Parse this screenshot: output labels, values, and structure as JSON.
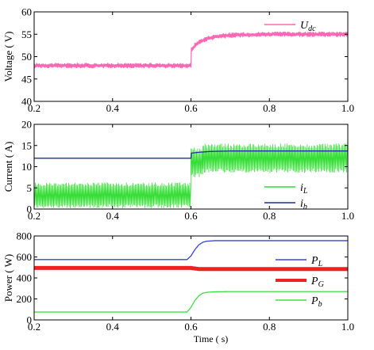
{
  "chart_data": [
    {
      "type": "line",
      "xlim": [
        0.2,
        1.0
      ],
      "ylim": [
        40,
        60
      ],
      "xticks": [
        "0.2",
        "0.4",
        "0.6",
        "0.8",
        "1.0"
      ],
      "yticks": [
        "40",
        "45",
        "50",
        "55",
        "60"
      ],
      "ylabel": "Voltage ( V)",
      "grid": false,
      "legend_position": "top-right",
      "series": [
        {
          "legend_main": "U",
          "legend_sub": "dc",
          "color": "#ff66b3",
          "band": 0.6,
          "x": [
            0.2,
            0.6,
            0.601,
            0.61,
            0.62,
            0.63,
            0.64,
            0.66,
            0.7,
            0.8,
            1.0
          ],
          "y": [
            48,
            48,
            51.5,
            52.5,
            53.2,
            53.6,
            54.0,
            54.4,
            54.8,
            55.0,
            55.0
          ]
        }
      ]
    },
    {
      "type": "line",
      "xlim": [
        0.2,
        1.0
      ],
      "ylim": [
        0,
        20
      ],
      "xticks": [
        "0.2",
        "0.4",
        "0.6",
        "0.8",
        "1.0"
      ],
      "yticks": [
        "0",
        "5",
        "10",
        "15",
        "20"
      ],
      "ylabel": "Current ( A)",
      "grid": false,
      "legend_position": "bottom-right",
      "series": [
        {
          "legend_main": "i",
          "legend_sub": "L",
          "color": "#33dd33",
          "band_ranges": [
            [
              0.2,
              0.6,
              0.2,
              6.3
            ],
            [
              0.6,
              0.63,
              7.5,
              14.5
            ],
            [
              0.63,
              1.0,
              8.5,
              15.5
            ]
          ]
        },
        {
          "legend_main": "i",
          "legend_sub": "b",
          "color": "#1a3399",
          "x": [
            0.2,
            0.6,
            0.601,
            0.62,
            0.65,
            0.7,
            1.0
          ],
          "y": [
            12,
            12,
            13.2,
            13.4,
            13.6,
            13.7,
            13.7
          ]
        }
      ]
    },
    {
      "type": "line",
      "xlim": [
        0.2,
        1.0
      ],
      "ylim": [
        0,
        800
      ],
      "xticks": [
        "0.2",
        "0.4",
        "0.6",
        "0.8",
        "1.0"
      ],
      "yticks": [
        "0",
        "200",
        "400",
        "600",
        "800"
      ],
      "ylabel": "Power ( W)",
      "xlabel": "Time ( s)",
      "grid": false,
      "legend_position": "right",
      "series": [
        {
          "legend_main": "P",
          "legend_sub": "L",
          "color": "#3344dd",
          "x": [
            0.2,
            0.59,
            0.6,
            0.61,
            0.62,
            0.63,
            0.64,
            0.66,
            0.7,
            1.0
          ],
          "y": [
            575,
            575,
            610,
            670,
            715,
            740,
            750,
            755,
            755,
            755
          ]
        },
        {
          "legend_main": "P",
          "legend_sub": "G",
          "color": "#ee2222",
          "width": 5,
          "x": [
            0.2,
            0.6,
            0.62,
            1.0
          ],
          "y": [
            495,
            495,
            485,
            485
          ]
        },
        {
          "legend_main": "P",
          "legend_sub": "b",
          "color": "#44dd44",
          "x": [
            0.2,
            0.59,
            0.6,
            0.61,
            0.62,
            0.63,
            0.64,
            0.66,
            0.7,
            1.0
          ],
          "y": [
            75,
            75,
            120,
            185,
            230,
            255,
            263,
            268,
            270,
            270
          ]
        }
      ]
    }
  ]
}
